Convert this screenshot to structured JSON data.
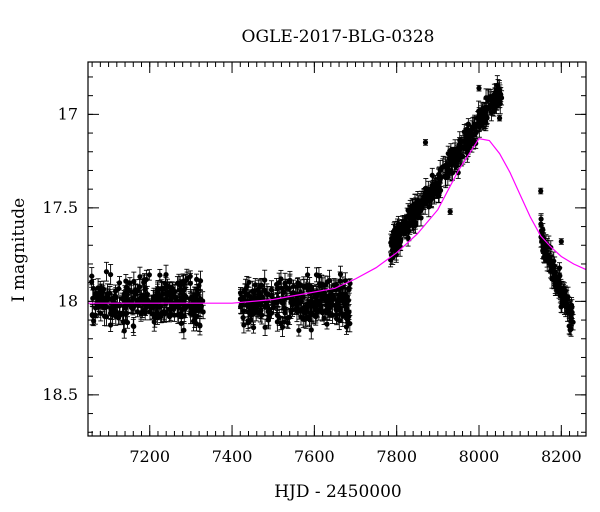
{
  "chart_data": {
    "type": "scatter",
    "title": "OGLE-2017-BLG-0328",
    "xlabel": "HJD - 2450000",
    "ylabel": "I magnitude",
    "xlim": [
      7050,
      8260
    ],
    "ylim": [
      18.72,
      16.72
    ],
    "y_inverted": true,
    "grid": false,
    "x_ticks": [
      7200,
      7400,
      7600,
      7800,
      8000,
      8200
    ],
    "x_tick_labels": [
      "7200",
      "7400",
      "7600",
      "7800",
      "8000",
      "8200"
    ],
    "y_ticks": [
      17,
      17.5,
      18,
      18.5
    ],
    "y_tick_labels": [
      "17",
      "17.5",
      "18",
      "18.5"
    ],
    "x_minor_step": 20,
    "y_minor_step": 0.1,
    "colors": {
      "data": "#000000",
      "model": "#ff00ff"
    },
    "observation_seasons": [
      {
        "x_range": [
          7058,
          7330
        ],
        "y_range": [
          17.82,
          18.18
        ]
      },
      {
        "x_range": [
          7420,
          7690
        ],
        "y_range": [
          17.82,
          18.18
        ]
      },
      {
        "x_range": [
          7785,
          8055
        ],
        "y_range": [
          17.72,
          16.88
        ]
      },
      {
        "x_range": [
          8150,
          8230
        ],
        "y_range": [
          17.65,
          18.12
        ]
      }
    ],
    "outliers": [
      {
        "x": 7870,
        "y": 17.15
      },
      {
        "x": 7930,
        "y": 17.52
      },
      {
        "x": 8000,
        "y": 16.86
      },
      {
        "x": 8050,
        "y": 17.02
      },
      {
        "x": 8150,
        "y": 17.41
      },
      {
        "x": 8200,
        "y": 17.68
      }
    ],
    "series": [
      {
        "type": "line",
        "x": [
          7050,
          7300,
          7400,
          7500,
          7600,
          7650,
          7700,
          7750,
          7800,
          7850,
          7900,
          7950,
          8000,
          8025,
          8050,
          8075,
          8100,
          8125,
          8150,
          8175,
          8200,
          8230,
          8260
        ],
        "y": [
          18.01,
          18.01,
          18.01,
          17.99,
          17.95,
          17.93,
          17.88,
          17.82,
          17.74,
          17.64,
          17.51,
          17.3,
          17.13,
          17.14,
          17.21,
          17.31,
          17.43,
          17.55,
          17.65,
          17.71,
          17.76,
          17.8,
          17.83
        ]
      }
    ]
  }
}
